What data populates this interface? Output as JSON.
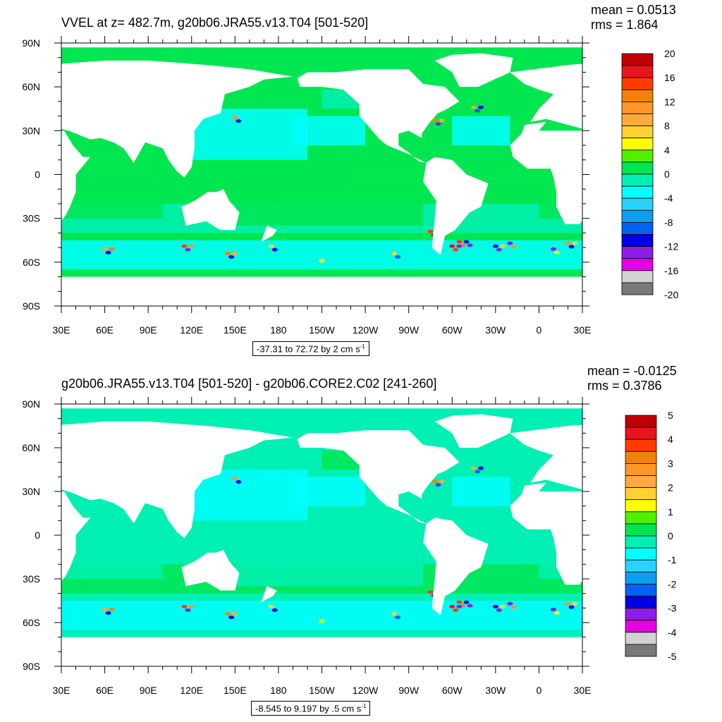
{
  "chart_data": [
    {
      "type": "heatmap",
      "title": "VVEL at z= 482.7m, g20b06.JRA55.v13.T04 [501-520]",
      "stats": {
        "mean": "mean = 0.0513",
        "rms": "rms = 1.864"
      },
      "x_ticks": [
        "30E",
        "60E",
        "90E",
        "120E",
        "150E",
        "180",
        "150W",
        "120W",
        "90W",
        "60W",
        "30W",
        "0",
        "30E"
      ],
      "y_ticks": [
        "90N",
        "60N",
        "30N",
        "0",
        "30S",
        "60S",
        "90S"
      ],
      "xlim": [
        "30E",
        "30E"
      ],
      "ylim": [
        "90S",
        "90N"
      ],
      "range": {
        "text": "-37.31 to 72.72 by 2 cm s",
        "unit_exp": "-1"
      },
      "colorbar": {
        "labels": [
          "20",
          "16",
          "12",
          "8",
          "4",
          "0",
          "-4",
          "-8",
          "-12",
          "-16",
          "-20"
        ],
        "colors": [
          "#c00000",
          "#e8141e",
          "#ff3c00",
          "#f0820a",
          "#ff9628",
          "#ffaa3c",
          "#ffd232",
          "#ffff00",
          "#52f000",
          "#00e650",
          "#00f0b4",
          "#00ffff",
          "#2ad2ff",
          "#0a9ff0",
          "#0064f0",
          "#0000e6",
          "#8c1ee6",
          "#e600e6",
          "#d2d2d2",
          "#787878"
        ]
      }
    },
    {
      "type": "heatmap",
      "title": "g20b06.JRA55.v13.T04 [501-520] - g20b06.CORE2.C02 [241-260]",
      "stats": {
        "mean": "mean = -0.0125",
        "rms": "rms = 0.3786"
      },
      "x_ticks": [
        "30E",
        "60E",
        "90E",
        "120E",
        "150E",
        "180",
        "150W",
        "120W",
        "90W",
        "60W",
        "30W",
        "0",
        "30E"
      ],
      "y_ticks": [
        "90N",
        "60N",
        "30N",
        "0",
        "30S",
        "60S",
        "90S"
      ],
      "xlim": [
        "30E",
        "30E"
      ],
      "ylim": [
        "90S",
        "90N"
      ],
      "range": {
        "text": "-8.545 to 9.197 by .5 cm s",
        "unit_exp": "-1"
      },
      "colorbar": {
        "labels": [
          "5",
          "4",
          "3",
          "2",
          "1",
          "0",
          "-1",
          "-2",
          "-3",
          "-4",
          "-5"
        ],
        "colors": [
          "#c00000",
          "#e8141e",
          "#ff3c00",
          "#f0820a",
          "#ff9628",
          "#ffaa3c",
          "#ffd232",
          "#ffff00",
          "#52f000",
          "#00e650",
          "#00f0b4",
          "#00ffff",
          "#2ad2ff",
          "#0a9ff0",
          "#0064f0",
          "#0000e6",
          "#8c1ee6",
          "#e600e6",
          "#d2d2d2",
          "#787878"
        ]
      }
    }
  ]
}
